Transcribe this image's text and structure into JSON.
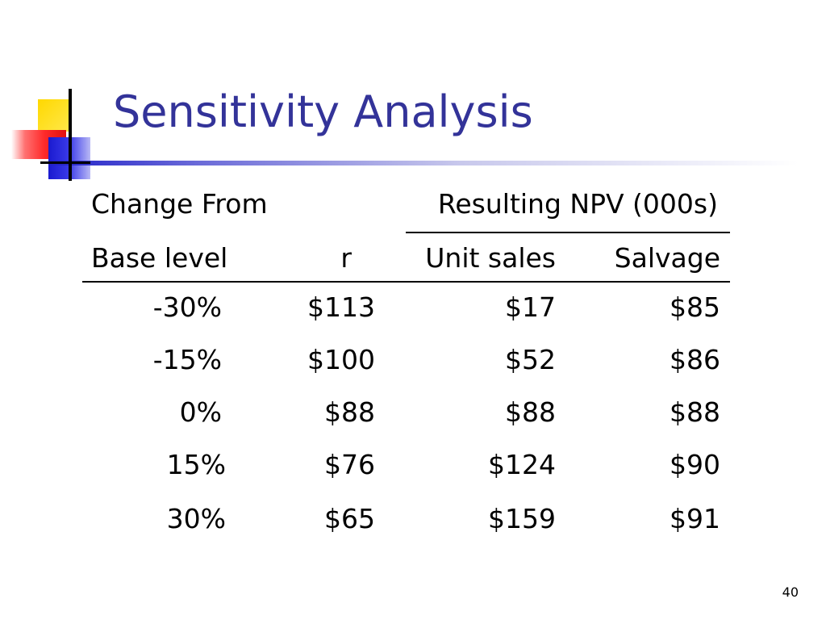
{
  "slide": {
    "title": "Sensitivity Analysis",
    "page_number": "40"
  },
  "table": {
    "header1": {
      "change_from": "Change From",
      "resulting_npv": "Resulting NPV (000s)"
    },
    "header2": {
      "base_level": "Base level",
      "r": "r",
      "unit_sales": "Unit sales",
      "salvage": "Salvage"
    },
    "rows": [
      {
        "change": "-30%",
        "r": "$113",
        "unit_sales": "$17",
        "salvage": "$85"
      },
      {
        "change": "-15%",
        "r": "$100",
        "unit_sales": "$52",
        "salvage": "$86"
      },
      {
        "change": "0%",
        "r": "$88",
        "unit_sales": "$88",
        "salvage": "$88"
      },
      {
        "change": "15%",
        "r": "$76",
        "unit_sales": "$124",
        "salvage": "$90"
      },
      {
        "change": "30%",
        "r": "$65",
        "unit_sales": "$159",
        "salvage": "$91"
      }
    ]
  },
  "colors": {
    "title": "#333399",
    "logo_yellow": "#ffd800",
    "logo_red": "#ff2a2a",
    "logo_blue": "#1a1ad0"
  }
}
